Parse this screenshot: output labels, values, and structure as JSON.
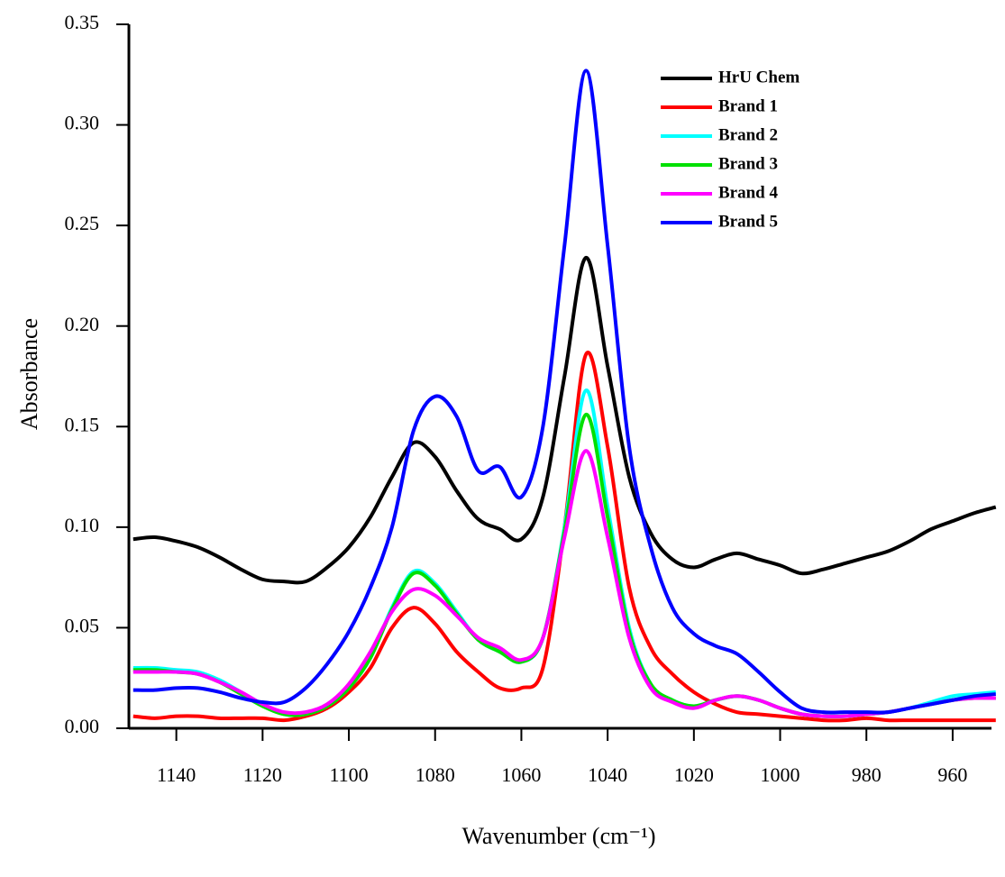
{
  "chart_data": {
    "type": "line",
    "xlabel": "Wavenumber (cm⁻¹)",
    "ylabel": "Absorbance",
    "x": [
      1150,
      1145,
      1140,
      1135,
      1130,
      1125,
      1120,
      1115,
      1110,
      1105,
      1100,
      1095,
      1090,
      1085,
      1080,
      1075,
      1070,
      1065,
      1060,
      1055,
      1050,
      1045,
      1040,
      1035,
      1030,
      1025,
      1020,
      1015,
      1010,
      1005,
      1000,
      995,
      990,
      985,
      980,
      975,
      970,
      965,
      960,
      955,
      950
    ],
    "xlim": [
      1151,
      951
    ],
    "xticks": [
      1140,
      1120,
      1100,
      1080,
      1060,
      1040,
      1020,
      1000,
      980,
      960
    ],
    "ylim": [
      0,
      0.35
    ],
    "yticks": [
      {
        "value": 0,
        "label": "0.00"
      },
      0.05,
      {
        "value": 0.1,
        "label": "0.10"
      },
      0.15,
      {
        "value": 0.2,
        "label": "0.20"
      },
      0.25,
      {
        "value": 0.3,
        "label": "0.30"
      },
      0.35
    ],
    "legend": "upper right",
    "series": [
      {
        "name": "HrU Chem",
        "color": "#000000",
        "values": [
          0.094,
          0.095,
          0.093,
          0.09,
          0.085,
          0.079,
          0.074,
          0.073,
          0.073,
          0.08,
          0.09,
          0.105,
          0.125,
          0.142,
          0.135,
          0.118,
          0.104,
          0.099,
          0.094,
          0.115,
          0.175,
          0.234,
          0.18,
          0.125,
          0.097,
          0.084,
          0.08,
          0.084,
          0.087,
          0.084,
          0.081,
          0.077,
          0.079,
          0.082,
          0.085,
          0.088,
          0.093,
          0.099,
          0.103,
          0.107,
          0.11
        ]
      },
      {
        "name": "Brand 1",
        "color": "#ff0000",
        "values": [
          0.006,
          0.005,
          0.006,
          0.006,
          0.005,
          0.005,
          0.005,
          0.004,
          0.006,
          0.01,
          0.018,
          0.03,
          0.05,
          0.06,
          0.052,
          0.038,
          0.028,
          0.02,
          0.02,
          0.03,
          0.1,
          0.186,
          0.14,
          0.07,
          0.04,
          0.027,
          0.018,
          0.012,
          0.008,
          0.007,
          0.006,
          0.005,
          0.004,
          0.004,
          0.005,
          0.004,
          0.004,
          0.004,
          0.004,
          0.004,
          0.004
        ]
      },
      {
        "name": "Brand 2",
        "color": "#00ffff",
        "values": [
          0.03,
          0.03,
          0.029,
          0.028,
          0.024,
          0.018,
          0.012,
          0.007,
          0.007,
          0.011,
          0.02,
          0.035,
          0.06,
          0.078,
          0.072,
          0.058,
          0.044,
          0.038,
          0.033,
          0.045,
          0.1,
          0.168,
          0.11,
          0.05,
          0.022,
          0.014,
          0.011,
          0.014,
          0.016,
          0.014,
          0.01,
          0.007,
          0.006,
          0.006,
          0.007,
          0.008,
          0.01,
          0.013,
          0.016,
          0.017,
          0.018
        ]
      },
      {
        "name": "Brand 3",
        "color": "#00e000",
        "values": [
          0.029,
          0.029,
          0.028,
          0.027,
          0.023,
          0.017,
          0.011,
          0.007,
          0.007,
          0.011,
          0.02,
          0.035,
          0.059,
          0.077,
          0.071,
          0.057,
          0.044,
          0.038,
          0.033,
          0.045,
          0.098,
          0.156,
          0.105,
          0.048,
          0.022,
          0.014,
          0.011,
          0.014,
          0.016,
          0.014,
          0.01,
          0.007,
          0.006,
          0.006,
          0.007,
          0.008,
          0.01,
          0.012,
          0.014,
          0.015,
          0.015
        ]
      },
      {
        "name": "Brand 4",
        "color": "#ff00ff",
        "values": [
          0.028,
          0.028,
          0.028,
          0.027,
          0.023,
          0.018,
          0.012,
          0.008,
          0.008,
          0.012,
          0.022,
          0.038,
          0.058,
          0.069,
          0.066,
          0.056,
          0.045,
          0.04,
          0.034,
          0.045,
          0.095,
          0.138,
          0.095,
          0.045,
          0.02,
          0.013,
          0.01,
          0.014,
          0.016,
          0.014,
          0.01,
          0.007,
          0.006,
          0.006,
          0.007,
          0.008,
          0.01,
          0.012,
          0.014,
          0.015,
          0.015
        ]
      },
      {
        "name": "Brand 5",
        "color": "#0000ff",
        "values": [
          0.019,
          0.019,
          0.02,
          0.02,
          0.018,
          0.015,
          0.013,
          0.013,
          0.02,
          0.032,
          0.048,
          0.07,
          0.1,
          0.148,
          0.165,
          0.155,
          0.128,
          0.13,
          0.115,
          0.15,
          0.24,
          0.327,
          0.24,
          0.14,
          0.09,
          0.06,
          0.047,
          0.041,
          0.037,
          0.028,
          0.018,
          0.01,
          0.008,
          0.008,
          0.008,
          0.008,
          0.01,
          0.012,
          0.014,
          0.016,
          0.017
        ]
      }
    ]
  }
}
